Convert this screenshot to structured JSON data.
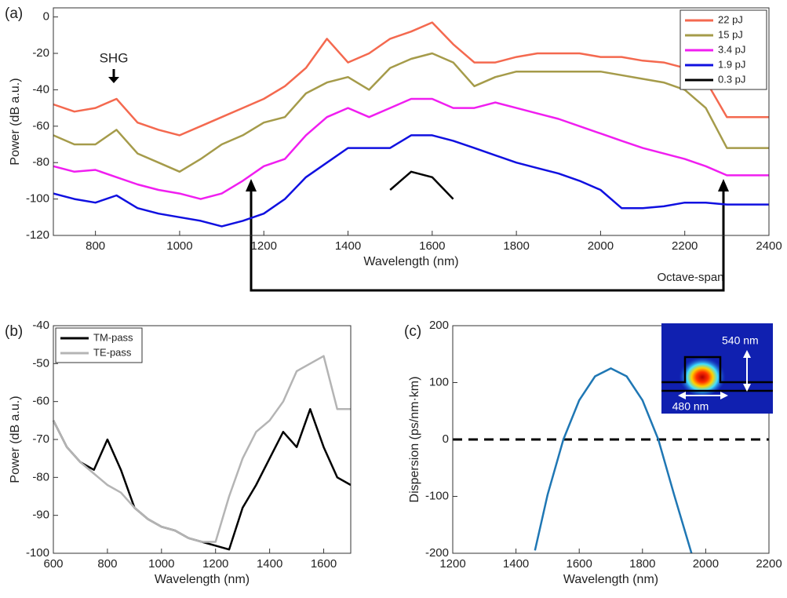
{
  "chart_data": [
    {
      "type": "line",
      "panel": "(a)",
      "xlabel": "Wavelength (nm)",
      "ylabel": "Power (dB a.u.)",
      "xlim": [
        700,
        2400
      ],
      "xticks": [
        800,
        1000,
        1200,
        1400,
        1600,
        1800,
        2000,
        2200,
        2400
      ],
      "ylim": [
        -120,
        5
      ],
      "yticks": [
        -120,
        -100,
        -80,
        -60,
        -40,
        -20,
        0
      ],
      "legend": "upper right",
      "annotations": [
        "SHG",
        "Octave-span"
      ],
      "x": [
        700,
        750,
        800,
        850,
        900,
        950,
        1000,
        1050,
        1100,
        1150,
        1200,
        1250,
        1300,
        1350,
        1400,
        1450,
        1500,
        1550,
        1600,
        1650,
        1700,
        1750,
        1800,
        1850,
        1900,
        1950,
        2000,
        2050,
        2100,
        2150,
        2200,
        2250,
        2300,
        2350,
        2400
      ],
      "series": [
        {
          "name": "22 pJ",
          "color": "#f4694f",
          "values": [
            -48,
            -52,
            -50,
            -45,
            -58,
            -62,
            -65,
            -60,
            -55,
            -50,
            -45,
            -38,
            -28,
            -12,
            -25,
            -20,
            -12,
            -8,
            -3,
            -15,
            -25,
            -25,
            -22,
            -20,
            -20,
            -20,
            -22,
            -22,
            -24,
            -25,
            -28,
            -35,
            -55,
            -55,
            -55
          ]
        },
        {
          "name": "15 pJ",
          "color": "#a59b4a",
          "values": [
            -65,
            -70,
            -70,
            -62,
            -75,
            -80,
            -85,
            -78,
            -70,
            -65,
            -58,
            -55,
            -42,
            -36,
            -33,
            -40,
            -28,
            -23,
            -20,
            -25,
            -38,
            -33,
            -30,
            -30,
            -30,
            -30,
            -30,
            -32,
            -34,
            -36,
            -40,
            -50,
            -72,
            -72,
            -72
          ]
        },
        {
          "name": "3.4 pJ",
          "color": "#f01ef0",
          "values": [
            -82,
            -85,
            -84,
            -88,
            -92,
            -95,
            -97,
            -100,
            -97,
            -90,
            -82,
            -78,
            -65,
            -55,
            -50,
            -55,
            -50,
            -45,
            -45,
            -50,
            -50,
            -47,
            -50,
            -53,
            -56,
            -60,
            -64,
            -68,
            -72,
            -75,
            -78,
            -82,
            -87,
            -87,
            -87
          ]
        },
        {
          "name": "1.9 pJ",
          "color": "#1010e0",
          "values": [
            -97,
            -100,
            -102,
            -98,
            -105,
            -108,
            -110,
            -112,
            -115,
            -112,
            -108,
            -100,
            -88,
            -80,
            -72,
            -72,
            -72,
            -65,
            -65,
            -68,
            -72,
            -76,
            -80,
            -83,
            -86,
            -90,
            -95,
            -105,
            -105,
            -104,
            -102,
            -102,
            -103,
            -103,
            -103
          ]
        },
        {
          "name": "0.3 pJ",
          "color": "#000000",
          "values": [
            null,
            null,
            null,
            null,
            null,
            null,
            null,
            null,
            null,
            null,
            null,
            null,
            null,
            null,
            null,
            null,
            -95,
            -85,
            -88,
            -100,
            null,
            null,
            null,
            null,
            null,
            null,
            null,
            null,
            null,
            null,
            null,
            null,
            null,
            null,
            null
          ]
        }
      ]
    },
    {
      "type": "line",
      "panel": "(b)",
      "xlabel": "Wavelength (nm)",
      "ylabel": "Power (dB a.u.)",
      "xlim": [
        600,
        1700
      ],
      "xticks": [
        600,
        800,
        1000,
        1200,
        1400,
        1600
      ],
      "ylim": [
        -100,
        -40
      ],
      "yticks": [
        -100,
        -90,
        -80,
        -70,
        -60,
        -50,
        -40
      ],
      "legend": "upper left",
      "x": [
        600,
        650,
        700,
        750,
        800,
        850,
        900,
        950,
        1000,
        1050,
        1100,
        1150,
        1200,
        1250,
        1300,
        1350,
        1400,
        1450,
        1500,
        1550,
        1600,
        1650,
        1700
      ],
      "series": [
        {
          "name": "TM-pass",
          "color": "#000000",
          "values": [
            -65,
            -72,
            -76,
            -78,
            -70,
            -78,
            -88,
            -91,
            -93,
            -94,
            -96,
            -97,
            -98,
            -99,
            -88,
            -82,
            -75,
            -68,
            -72,
            -62,
            -72,
            -80,
            -82
          ]
        },
        {
          "name": "TE-pass",
          "color": "#b4b4b4",
          "values": [
            -65,
            -72,
            -76,
            -79,
            -82,
            -84,
            -88,
            -91,
            -93,
            -94,
            -96,
            -97,
            -97,
            -85,
            -75,
            -68,
            -65,
            -60,
            -52,
            -50,
            -48,
            -62,
            -62
          ]
        }
      ]
    },
    {
      "type": "line",
      "panel": "(c)",
      "xlabel": "Wavelength (nm)",
      "ylabel": "Dispersion (ps/nm·km)",
      "xlim": [
        1200,
        2200
      ],
      "xticks": [
        1200,
        1400,
        1600,
        1800,
        2000,
        2200
      ],
      "ylim": [
        -200,
        200
      ],
      "yticks": [
        -200,
        -100,
        0,
        100,
        200
      ],
      "reference_line": 0,
      "annotations": [
        "540 nm",
        "480 nm"
      ],
      "x": [
        1460,
        1500,
        1550,
        1600,
        1650,
        1700,
        1750,
        1800,
        1850,
        1900,
        1955
      ],
      "series": [
        {
          "color": "#1f77b4",
          "values": [
            -195,
            -97,
            0,
            69,
            111,
            125,
            111,
            69,
            0,
            -97,
            -200
          ]
        }
      ]
    }
  ]
}
